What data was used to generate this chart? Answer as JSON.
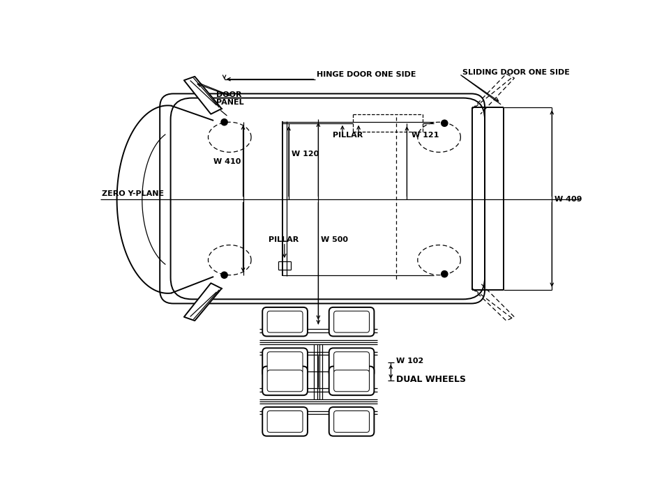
{
  "bg_color": "#ffffff",
  "line_color": "#000000",
  "labels": {
    "hinge_door": "HINGE DOOR ONE SIDE",
    "sliding_door": "SLIDING DOOR ONE SIDE",
    "door_panel": "DOOR\nPANEL",
    "zero_y_plane": "ZERO Y-PLANE",
    "pillar_top": "PILLAR",
    "pillar_bottom": "PILLAR",
    "w410": "W 410",
    "w120": "W 120",
    "w500": "W 500",
    "w121": "W 121",
    "w409": "W 409",
    "w102": "W 102",
    "dual_wheels": "DUAL WHEELS"
  }
}
